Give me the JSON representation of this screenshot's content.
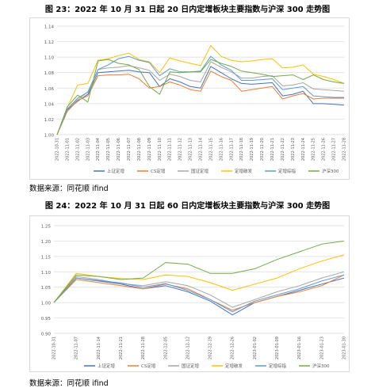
{
  "figure1": {
    "title": "图 23：2022 年 10 月 31 日起 20 日内定增板块主要指数与沪深 300 走势图",
    "source": "数据来源：同花顺 ifind"
  },
  "figure2": {
    "title": "图 24：2022 年 10 月 31 日起 60 日内定增板块主要指数与沪深 300 走势图",
    "source": "数据来源：同花顺 ifind"
  },
  "colors": {
    "上证定增": "#4472c4",
    "CS定增": "#ed7d31",
    "国证定增": "#a5a5a5",
    "定增破发": "#ffc000",
    "定增综指": "#5b9bd5",
    "沪深300": "#70ad47"
  },
  "chart_data": [
    {
      "type": "line",
      "ylim": [
        1.0,
        1.14
      ],
      "yticks": [
        "1.00",
        "1.02",
        "1.04",
        "1.06",
        "1.08",
        "1.10",
        "1.12",
        "1.14"
      ],
      "categories": [
        "2022-10-31",
        "2022-11-01",
        "2022-11-02",
        "2022-11-03",
        "2022-11-04",
        "2022-11-05",
        "2022-11-06",
        "2022-11-07",
        "2022-11-08",
        "2022-11-09",
        "2022-11-10",
        "2022-11-11",
        "2022-11-12",
        "2022-11-13",
        "2022-11-14",
        "2022-11-15",
        "2022-11-16",
        "2022-11-17",
        "2022-11-18",
        "2022-11-19",
        "2022-11-20",
        "2022-11-21",
        "2022-11-22",
        "2022-11-23",
        "2022-11-24",
        "2022-11-25",
        "2022-11-26",
        "2022-11-27",
        "2022-11-28"
      ],
      "legend": "bottom",
      "series": [
        {
          "name": "上证定增",
          "values": [
            1.0,
            1.032,
            1.043,
            1.052,
            1.08,
            1.081,
            1.082,
            1.083,
            1.081,
            1.08,
            1.062,
            1.072,
            1.068,
            1.062,
            1.06,
            1.088,
            1.08,
            1.072,
            1.066,
            1.065,
            1.066,
            1.067,
            1.05,
            1.052,
            1.056,
            1.04,
            1.04,
            1.039,
            1.038
          ]
        },
        {
          "name": "CS定增",
          "values": [
            1.0,
            1.03,
            1.044,
            1.05,
            1.076,
            1.077,
            1.077,
            1.078,
            1.072,
            1.06,
            1.062,
            1.068,
            1.064,
            1.058,
            1.056,
            1.082,
            1.075,
            1.07,
            1.056,
            1.058,
            1.06,
            1.062,
            1.046,
            1.05,
            1.053,
            1.046,
            1.047,
            1.047,
            1.047
          ]
        },
        {
          "name": "国证定增",
          "values": [
            1.0,
            1.033,
            1.045,
            1.055,
            1.084,
            1.086,
            1.087,
            1.089,
            1.086,
            1.083,
            1.07,
            1.078,
            1.075,
            1.07,
            1.068,
            1.094,
            1.087,
            1.081,
            1.073,
            1.073,
            1.075,
            1.076,
            1.063,
            1.064,
            1.067,
            1.059,
            1.058,
            1.057,
            1.056
          ]
        },
        {
          "name": "定增破发",
          "values": [
            1.0,
            1.035,
            1.064,
            1.066,
            1.096,
            1.098,
            1.102,
            1.105,
            1.097,
            1.094,
            1.08,
            1.099,
            1.095,
            1.092,
            1.089,
            1.115,
            1.101,
            1.096,
            1.094,
            1.095,
            1.097,
            1.098,
            1.086,
            1.087,
            1.09,
            1.078,
            1.075,
            1.071,
            1.066
          ]
        },
        {
          "name": "定增综指",
          "values": [
            1.0,
            1.033,
            1.047,
            1.055,
            1.084,
            1.09,
            1.098,
            1.101,
            1.096,
            1.093,
            1.076,
            1.085,
            1.081,
            1.081,
            1.082,
            1.101,
            1.09,
            1.083,
            1.07,
            1.07,
            1.071,
            1.072,
            1.058,
            1.06,
            1.062,
            1.05,
            1.049,
            1.048,
            1.048
          ]
        },
        {
          "name": "沪深300",
          "values": [
            1.0,
            1.036,
            1.051,
            1.042,
            1.095,
            1.097,
            1.092,
            1.09,
            1.084,
            1.062,
            1.052,
            1.081,
            1.08,
            1.081,
            1.081,
            1.097,
            1.092,
            1.088,
            1.082,
            1.08,
            1.078,
            1.075,
            1.076,
            1.077,
            1.071,
            1.077,
            1.071,
            1.068,
            1.066
          ]
        }
      ]
    },
    {
      "type": "line",
      "ylim": [
        0.9,
        1.25
      ],
      "yticks": [
        "0.90",
        "0.95",
        "1.00",
        "1.05",
        "1.10",
        "1.15",
        "1.20",
        "1.25"
      ],
      "categories": [
        "2022-10-31",
        "2022-11-07",
        "2022-11-14",
        "2022-11-21",
        "2022-11-28",
        "2022-12-05",
        "2022-12-12",
        "2022-12-19",
        "2022-12-26",
        "2023-01-02",
        "2023-01-09",
        "2023-01-16",
        "2023-01-23",
        "2023-01-30"
      ],
      "legend": "bottom",
      "series": [
        {
          "name": "上证定增",
          "values": [
            1.0,
            1.08,
            1.07,
            1.06,
            1.045,
            1.055,
            1.035,
            1.005,
            0.96,
            1.0,
            1.02,
            1.04,
            1.06,
            1.08
          ]
        },
        {
          "name": "CS定增",
          "values": [
            1.0,
            1.075,
            1.065,
            1.055,
            1.045,
            1.06,
            1.045,
            1.01,
            0.975,
            1.0,
            1.02,
            1.035,
            1.055,
            1.09
          ]
        },
        {
          "name": "国证定增",
          "values": [
            1.0,
            1.085,
            1.075,
            1.062,
            1.055,
            1.068,
            1.055,
            1.025,
            0.985,
            1.01,
            1.035,
            1.055,
            1.08,
            1.1
          ]
        },
        {
          "name": "定增破发",
          "values": [
            1.0,
            1.095,
            1.085,
            1.078,
            1.075,
            1.09,
            1.085,
            1.065,
            1.04,
            1.06,
            1.08,
            1.11,
            1.135,
            1.155
          ]
        },
        {
          "name": "定增综指",
          "values": [
            1.0,
            1.08,
            1.072,
            1.064,
            1.05,
            1.062,
            1.04,
            1.01,
            0.97,
            1.005,
            1.025,
            1.045,
            1.07,
            1.09
          ]
        },
        {
          "name": "沪深300",
          "values": [
            1.0,
            1.09,
            1.085,
            1.075,
            1.08,
            1.13,
            1.125,
            1.095,
            1.095,
            1.11,
            1.14,
            1.165,
            1.19,
            1.2
          ]
        }
      ]
    }
  ]
}
